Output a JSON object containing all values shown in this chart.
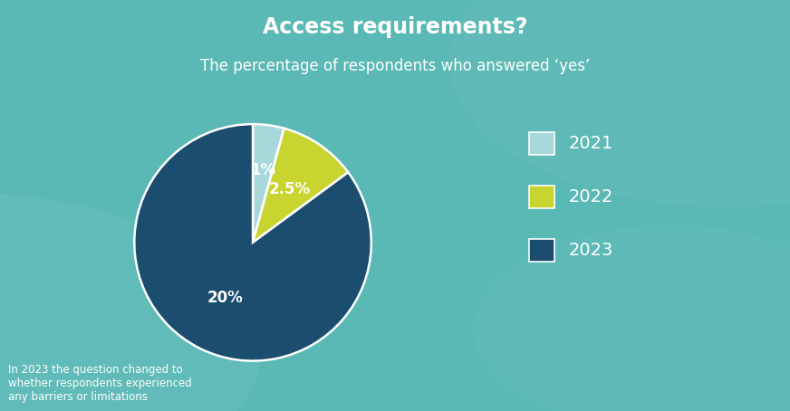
{
  "title": "Access requirements?",
  "subtitle": "The percentage of respondents who answered ‘yes’",
  "slices": [
    1,
    2.5,
    20
  ],
  "labels": [
    "1%",
    "2.5%",
    "20%"
  ],
  "years": [
    "2021",
    "2022",
    "2023"
  ],
  "colors": [
    "#a8d8da",
    "#c8d430",
    "#1a4d6e"
  ],
  "wedge_edge_color": "white",
  "background_color": "#5ab8b5",
  "title_color": "white",
  "subtitle_color": "white",
  "label_color": "white",
  "legend_label_color": "white",
  "annotation_text": "In 2023 the question changed to\nwhether respondents experienced\nany barriers or limitations",
  "annotation_color": "white",
  "annotation_fontsize": 8.5,
  "title_fontsize": 17,
  "subtitle_fontsize": 12,
  "legend_fontsize": 14,
  "label_fontsize": 12
}
